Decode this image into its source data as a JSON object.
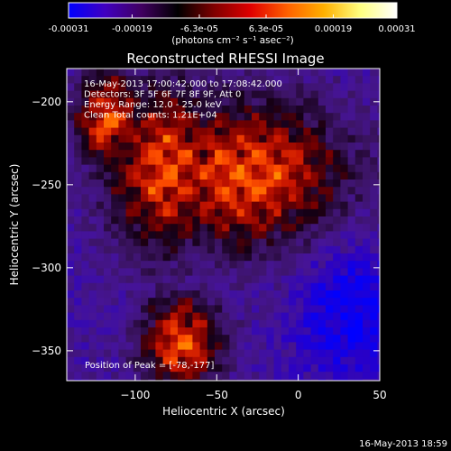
{
  "colorbar": {
    "tick_labels": [
      "-0.00031",
      "-0.00019",
      "-6.3e-05",
      "6.3e-05",
      "0.00019",
      "0.00031"
    ],
    "tick_values": [
      -0.00031,
      -0.00019,
      -6.3e-05,
      6.3e-05,
      0.00019,
      0.00031
    ],
    "range": [
      -0.00031,
      0.00031
    ],
    "units_label": "(photons cm⁻² s⁻¹ asec⁻²)",
    "colors": [
      "#0000ff",
      "#4000c0",
      "#400060",
      "#000000",
      "#800000",
      "#e00000",
      "#ff6000",
      "#ffb000",
      "#ffff80",
      "#ffffff"
    ]
  },
  "chart_data": {
    "type": "heatmap",
    "title": "Reconstructed RHESSI Image",
    "xlabel": "Heliocentric X (arcsec)",
    "ylabel": "Heliocentric Y (arcsec)",
    "xlim": [
      -142,
      50
    ],
    "ylim": [
      -368,
      -180
    ],
    "x_ticks": [
      -100,
      -50,
      0,
      50
    ],
    "x_tick_labels": [
      "−100",
      "−50",
      "0",
      "50"
    ],
    "y_ticks": [
      -200,
      -250,
      -300,
      -350
    ],
    "y_tick_labels": [
      "−200",
      "−250",
      "−300",
      "−350"
    ],
    "annotations": [
      "16-May-2013 17:00:42.000 to 17:08:42.000",
      "Detectors: 3F 5F 6F 7F 8F 9F, Att 0",
      "Energy Range: 12.0 - 25.0 keV",
      "Clean    Total counts: 1.21E+04"
    ],
    "peak_label": "Position of Peak = [-78,-177]",
    "peak_position": [
      -78,
      -177
    ]
  },
  "footer": {
    "timestamp": "16-May-2013 18:59"
  }
}
